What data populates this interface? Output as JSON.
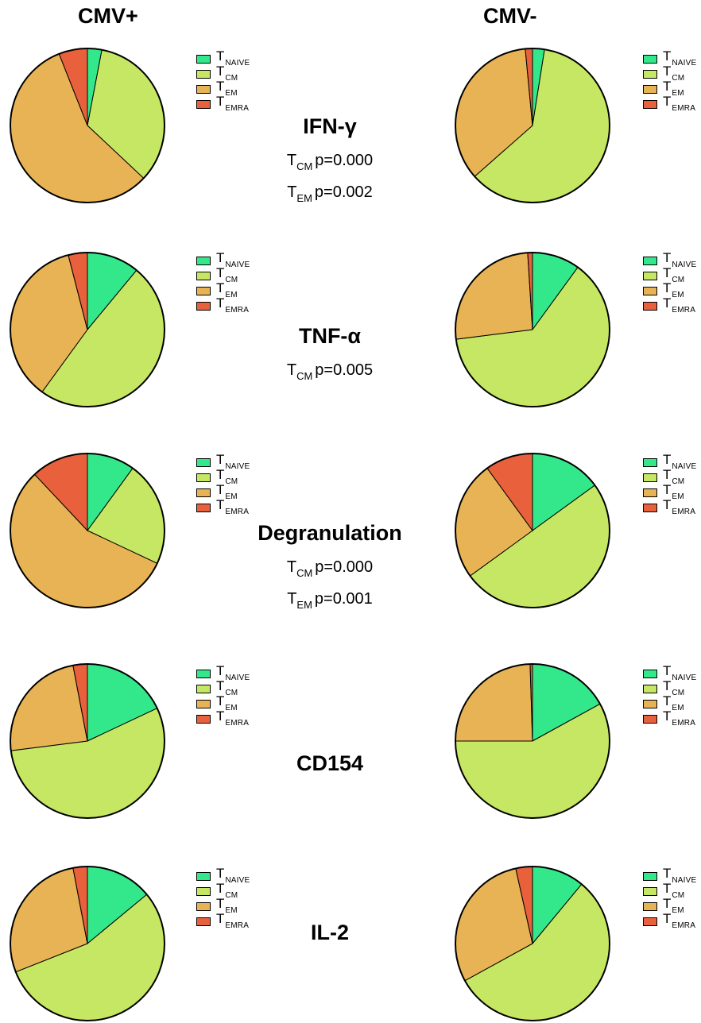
{
  "column_headers": {
    "left": "CMV+",
    "right": "CMV-"
  },
  "legend": {
    "items": [
      {
        "main": "T",
        "sub": "NAIVE",
        "color": "#33e88a"
      },
      {
        "main": "T",
        "sub": "CM",
        "color": "#c6e764"
      },
      {
        "main": "T",
        "sub": "EM",
        "color": "#e8b354"
      },
      {
        "main": "T",
        "sub": "EMRA",
        "color": "#e8603c"
      }
    ]
  },
  "rows": [
    {
      "title": "IFN-γ",
      "stats": [
        {
          "main": "T",
          "sub": "CM",
          "text": "p=0.000"
        },
        {
          "main": "T",
          "sub": "EM",
          "text": "p=0.002"
        }
      ]
    },
    {
      "title": "TNF-α",
      "stats": [
        {
          "main": "T",
          "sub": "CM",
          "text": "p=0.005"
        }
      ]
    },
    {
      "title": "Degranulation",
      "stats": [
        {
          "main": "T",
          "sub": "CM",
          "text": "p=0.000"
        },
        {
          "main": "T",
          "sub": "EM",
          "text": "p=0.001"
        }
      ]
    },
    {
      "title": "CD154",
      "stats": []
    },
    {
      "title": "IL-2",
      "stats": []
    }
  ],
  "chart_data": [
    {
      "type": "pie",
      "group": "CMV+",
      "row": "IFN-γ",
      "labels": [
        "TNAIVE",
        "TCM",
        "TEM",
        "TEMRA"
      ],
      "values": [
        3,
        34,
        57,
        6
      ]
    },
    {
      "type": "pie",
      "group": "CMV-",
      "row": "IFN-γ",
      "labels": [
        "TNAIVE",
        "TCM",
        "TEM",
        "TEMRA"
      ],
      "values": [
        2.5,
        61,
        35,
        1.5
      ]
    },
    {
      "type": "pie",
      "group": "CMV+",
      "row": "TNF-α",
      "labels": [
        "TNAIVE",
        "TCM",
        "TEM",
        "TEMRA"
      ],
      "values": [
        11,
        49,
        36,
        4
      ]
    },
    {
      "type": "pie",
      "group": "CMV-",
      "row": "TNF-α",
      "labels": [
        "TNAIVE",
        "TCM",
        "TEM",
        "TEMRA"
      ],
      "values": [
        10,
        63,
        26,
        1
      ]
    },
    {
      "type": "pie",
      "group": "CMV+",
      "row": "Degranulation",
      "labels": [
        "TNAIVE",
        "TCM",
        "TEM",
        "TEMRA"
      ],
      "values": [
        10,
        22,
        56,
        12
      ]
    },
    {
      "type": "pie",
      "group": "CMV-",
      "row": "Degranulation",
      "labels": [
        "TNAIVE",
        "TCM",
        "TEM",
        "TEMRA"
      ],
      "values": [
        15,
        50,
        25,
        10
      ]
    },
    {
      "type": "pie",
      "group": "CMV+",
      "row": "CD154",
      "labels": [
        "TNAIVE",
        "TCM",
        "TEM",
        "TEMRA"
      ],
      "values": [
        18,
        55,
        24,
        3
      ]
    },
    {
      "type": "pie",
      "group": "CMV-",
      "row": "CD154",
      "labels": [
        "TNAIVE",
        "TCM",
        "TEM",
        "TEMRA"
      ],
      "values": [
        17,
        58,
        24.5,
        0.5
      ]
    },
    {
      "type": "pie",
      "group": "CMV+",
      "row": "IL-2",
      "labels": [
        "TNAIVE",
        "TCM",
        "TEM",
        "TEMRA"
      ],
      "values": [
        14,
        55,
        28,
        3
      ]
    },
    {
      "type": "pie",
      "group": "CMV-",
      "row": "IL-2",
      "labels": [
        "TNAIVE",
        "TCM",
        "TEM",
        "TEMRA"
      ],
      "values": [
        11,
        56,
        29.5,
        3.5
      ]
    }
  ]
}
